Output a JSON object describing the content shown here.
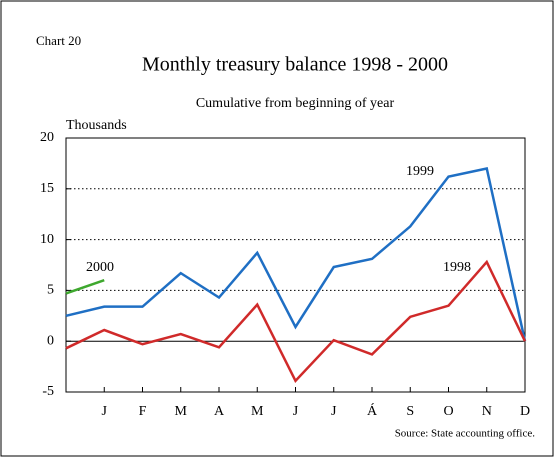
{
  "chart_data": {
    "type": "line",
    "label": "Chart 20",
    "title": "Monthly treasury balance 1998 - 2000",
    "subtitle": "Cumulative from beginning of year",
    "ylabel": "Thousands",
    "source": "Source: State accounting office.",
    "categories": [
      null,
      "J",
      "F",
      "M",
      "A",
      "M",
      "J",
      "J",
      "Á",
      "S",
      "O",
      "N",
      "D"
    ],
    "xlim": [
      0,
      12
    ],
    "ylim": [
      -5,
      20
    ],
    "yticks": [
      -5,
      0,
      5,
      10,
      15,
      20
    ],
    "grid": true,
    "series": [
      {
        "name": "1999",
        "color": "#1f6fc4",
        "values": [
          2.5,
          3.4,
          3.4,
          6.7,
          4.3,
          8.7,
          1.4,
          7.3,
          8.1,
          11.3,
          16.2,
          17.0,
          0
        ]
      },
      {
        "name": "1998",
        "color": "#d02a2a",
        "values": [
          -0.7,
          1.1,
          -0.3,
          0.7,
          -0.6,
          3.6,
          -3.9,
          0.1,
          -1.3,
          2.4,
          3.5,
          7.8,
          0
        ]
      },
      {
        "name": "2000",
        "color": "#3ea82e",
        "values": [
          4.7,
          6.0,
          null,
          null,
          null,
          null,
          null,
          null,
          null,
          null,
          null,
          null,
          null
        ]
      }
    ]
  }
}
